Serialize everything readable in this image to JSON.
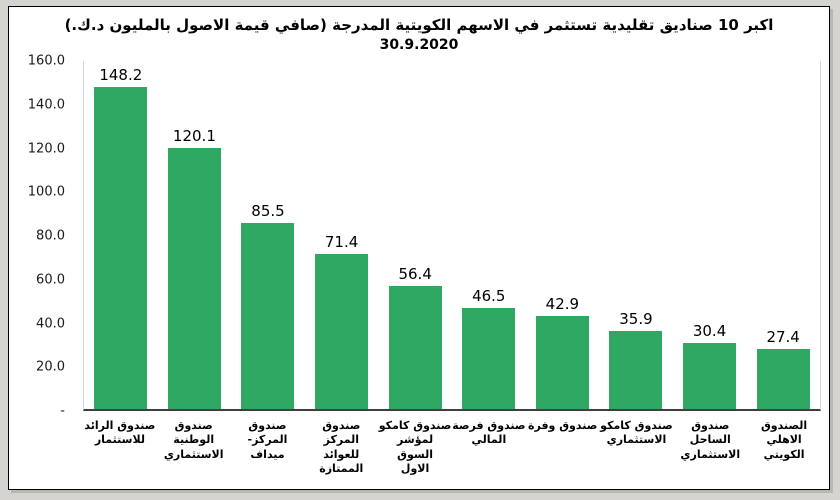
{
  "chart_data": {
    "type": "bar",
    "title": "اكبر 10 صناديق تقليدية تستثمر في الاسهم الكويتية المدرجة (صافي قيمة الاصول بالمليون د.ك.)",
    "subtitle": "30.9.2020",
    "categories": [
      "صندوق الرائد للاستثمار",
      "صندوق الوطنية الاستثماري",
      "صندوق المركز- ميداف",
      "صندوق المركز للعوائد الممتازة",
      "صندوق كامكو لمؤشر السوق الاول",
      "صندوق فرصة المالي",
      "صندوق وفرة",
      "صندوق كامكو الاستثماري",
      "صندوق الساحل الاستثماري",
      "الصندوق الاهلي الكويتي"
    ],
    "category_label_lines": [
      [
        "صندوق الرائد",
        "للاستثمار"
      ],
      [
        "صندوق الوطنية",
        "الاستثماري"
      ],
      [
        "صندوق المركز-",
        "ميداف"
      ],
      [
        "صندوق المركز",
        "للعوائد الممتازة"
      ],
      [
        "صندوق كامكو",
        "لمؤشر السوق",
        "الاول"
      ],
      [
        "صندوق فرصة",
        "المالي"
      ],
      [
        "صندوق وفرة"
      ],
      [
        "صندوق كامكو",
        "الاستثماري"
      ],
      [
        "صندوق الساحل",
        "الاستثماري"
      ],
      [
        "الصندوق الاهلي",
        "الكويتي"
      ]
    ],
    "values": [
      148.2,
      120.1,
      85.5,
      71.4,
      56.4,
      46.5,
      42.9,
      35.9,
      30.4,
      27.4
    ],
    "value_labels": [
      "148.2",
      "120.1",
      "85.5",
      "71.4",
      "56.4",
      "46.5",
      "42.9",
      "35.9",
      "30.4",
      "27.4"
    ],
    "ylim": [
      0,
      160
    ],
    "ytick_labels": [
      "160.0",
      "140.0",
      "120.0",
      "100.0",
      "80.0",
      "60.0",
      "40.0",
      "20.0",
      "-"
    ],
    "grid": false,
    "legend": false,
    "data_labels": true,
    "bar_color": "#2ea863",
    "xlabel": "",
    "ylabel": ""
  }
}
